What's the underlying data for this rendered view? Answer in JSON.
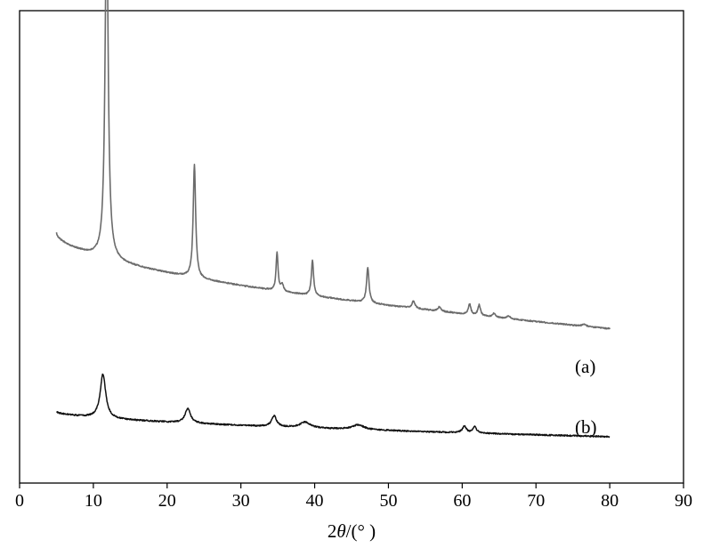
{
  "chart_data": {
    "type": "line",
    "title": "",
    "xlabel": {
      "prefix": "2",
      "symbol": "θ",
      "suffix": "/(° )"
    },
    "ylabel": "",
    "xlim": [
      0,
      90
    ],
    "x_ticks": [
      "0",
      "10",
      "20",
      "30",
      "40",
      "50",
      "60",
      "70",
      "80",
      "90"
    ],
    "y_ticks_visible": false,
    "grid": false,
    "series": [
      {
        "name": "(a)",
        "color": "#6b6b6b",
        "baseline": {
          "start": 44,
          "end": 17
        },
        "peaks": [
          {
            "x": 11.8,
            "height": 100,
            "width": 0.25
          },
          {
            "x": 23.7,
            "height": 32,
            "width": 0.2
          },
          {
            "x": 34.9,
            "height": 11,
            "width": 0.16
          },
          {
            "x": 35.6,
            "height": 2,
            "width": 0.2
          },
          {
            "x": 39.7,
            "height": 10,
            "width": 0.18
          },
          {
            "x": 47.2,
            "height": 10,
            "width": 0.2
          },
          {
            "x": 53.4,
            "height": 2,
            "width": 0.25
          },
          {
            "x": 56.9,
            "height": 1.2,
            "width": 0.25
          },
          {
            "x": 61.0,
            "height": 3,
            "width": 0.2
          },
          {
            "x": 62.3,
            "height": 3,
            "width": 0.2
          },
          {
            "x": 64.3,
            "height": 1,
            "width": 0.25
          },
          {
            "x": 66.3,
            "height": 0.8,
            "width": 0.25
          },
          {
            "x": 76.5,
            "height": 0.6,
            "width": 0.3
          }
        ],
        "x_range": [
          5,
          80
        ]
      },
      {
        "name": "(b)",
        "color": "#111111",
        "baseline": {
          "start": 7,
          "end": 0.5
        },
        "peaks": [
          {
            "x": 11.3,
            "height": 11.5,
            "width": 0.45
          },
          {
            "x": 22.8,
            "height": 3.8,
            "width": 0.45
          },
          {
            "x": 34.5,
            "height": 2.8,
            "width": 0.4
          },
          {
            "x": 38.7,
            "height": 1.5,
            "width": 0.8
          },
          {
            "x": 45.9,
            "height": 1.2,
            "width": 1.0
          },
          {
            "x": 60.3,
            "height": 1.8,
            "width": 0.3
          },
          {
            "x": 61.7,
            "height": 1.6,
            "width": 0.3
          }
        ],
        "x_range": [
          5,
          80
        ]
      }
    ],
    "annotations": [
      "(a)",
      "(b)"
    ]
  }
}
